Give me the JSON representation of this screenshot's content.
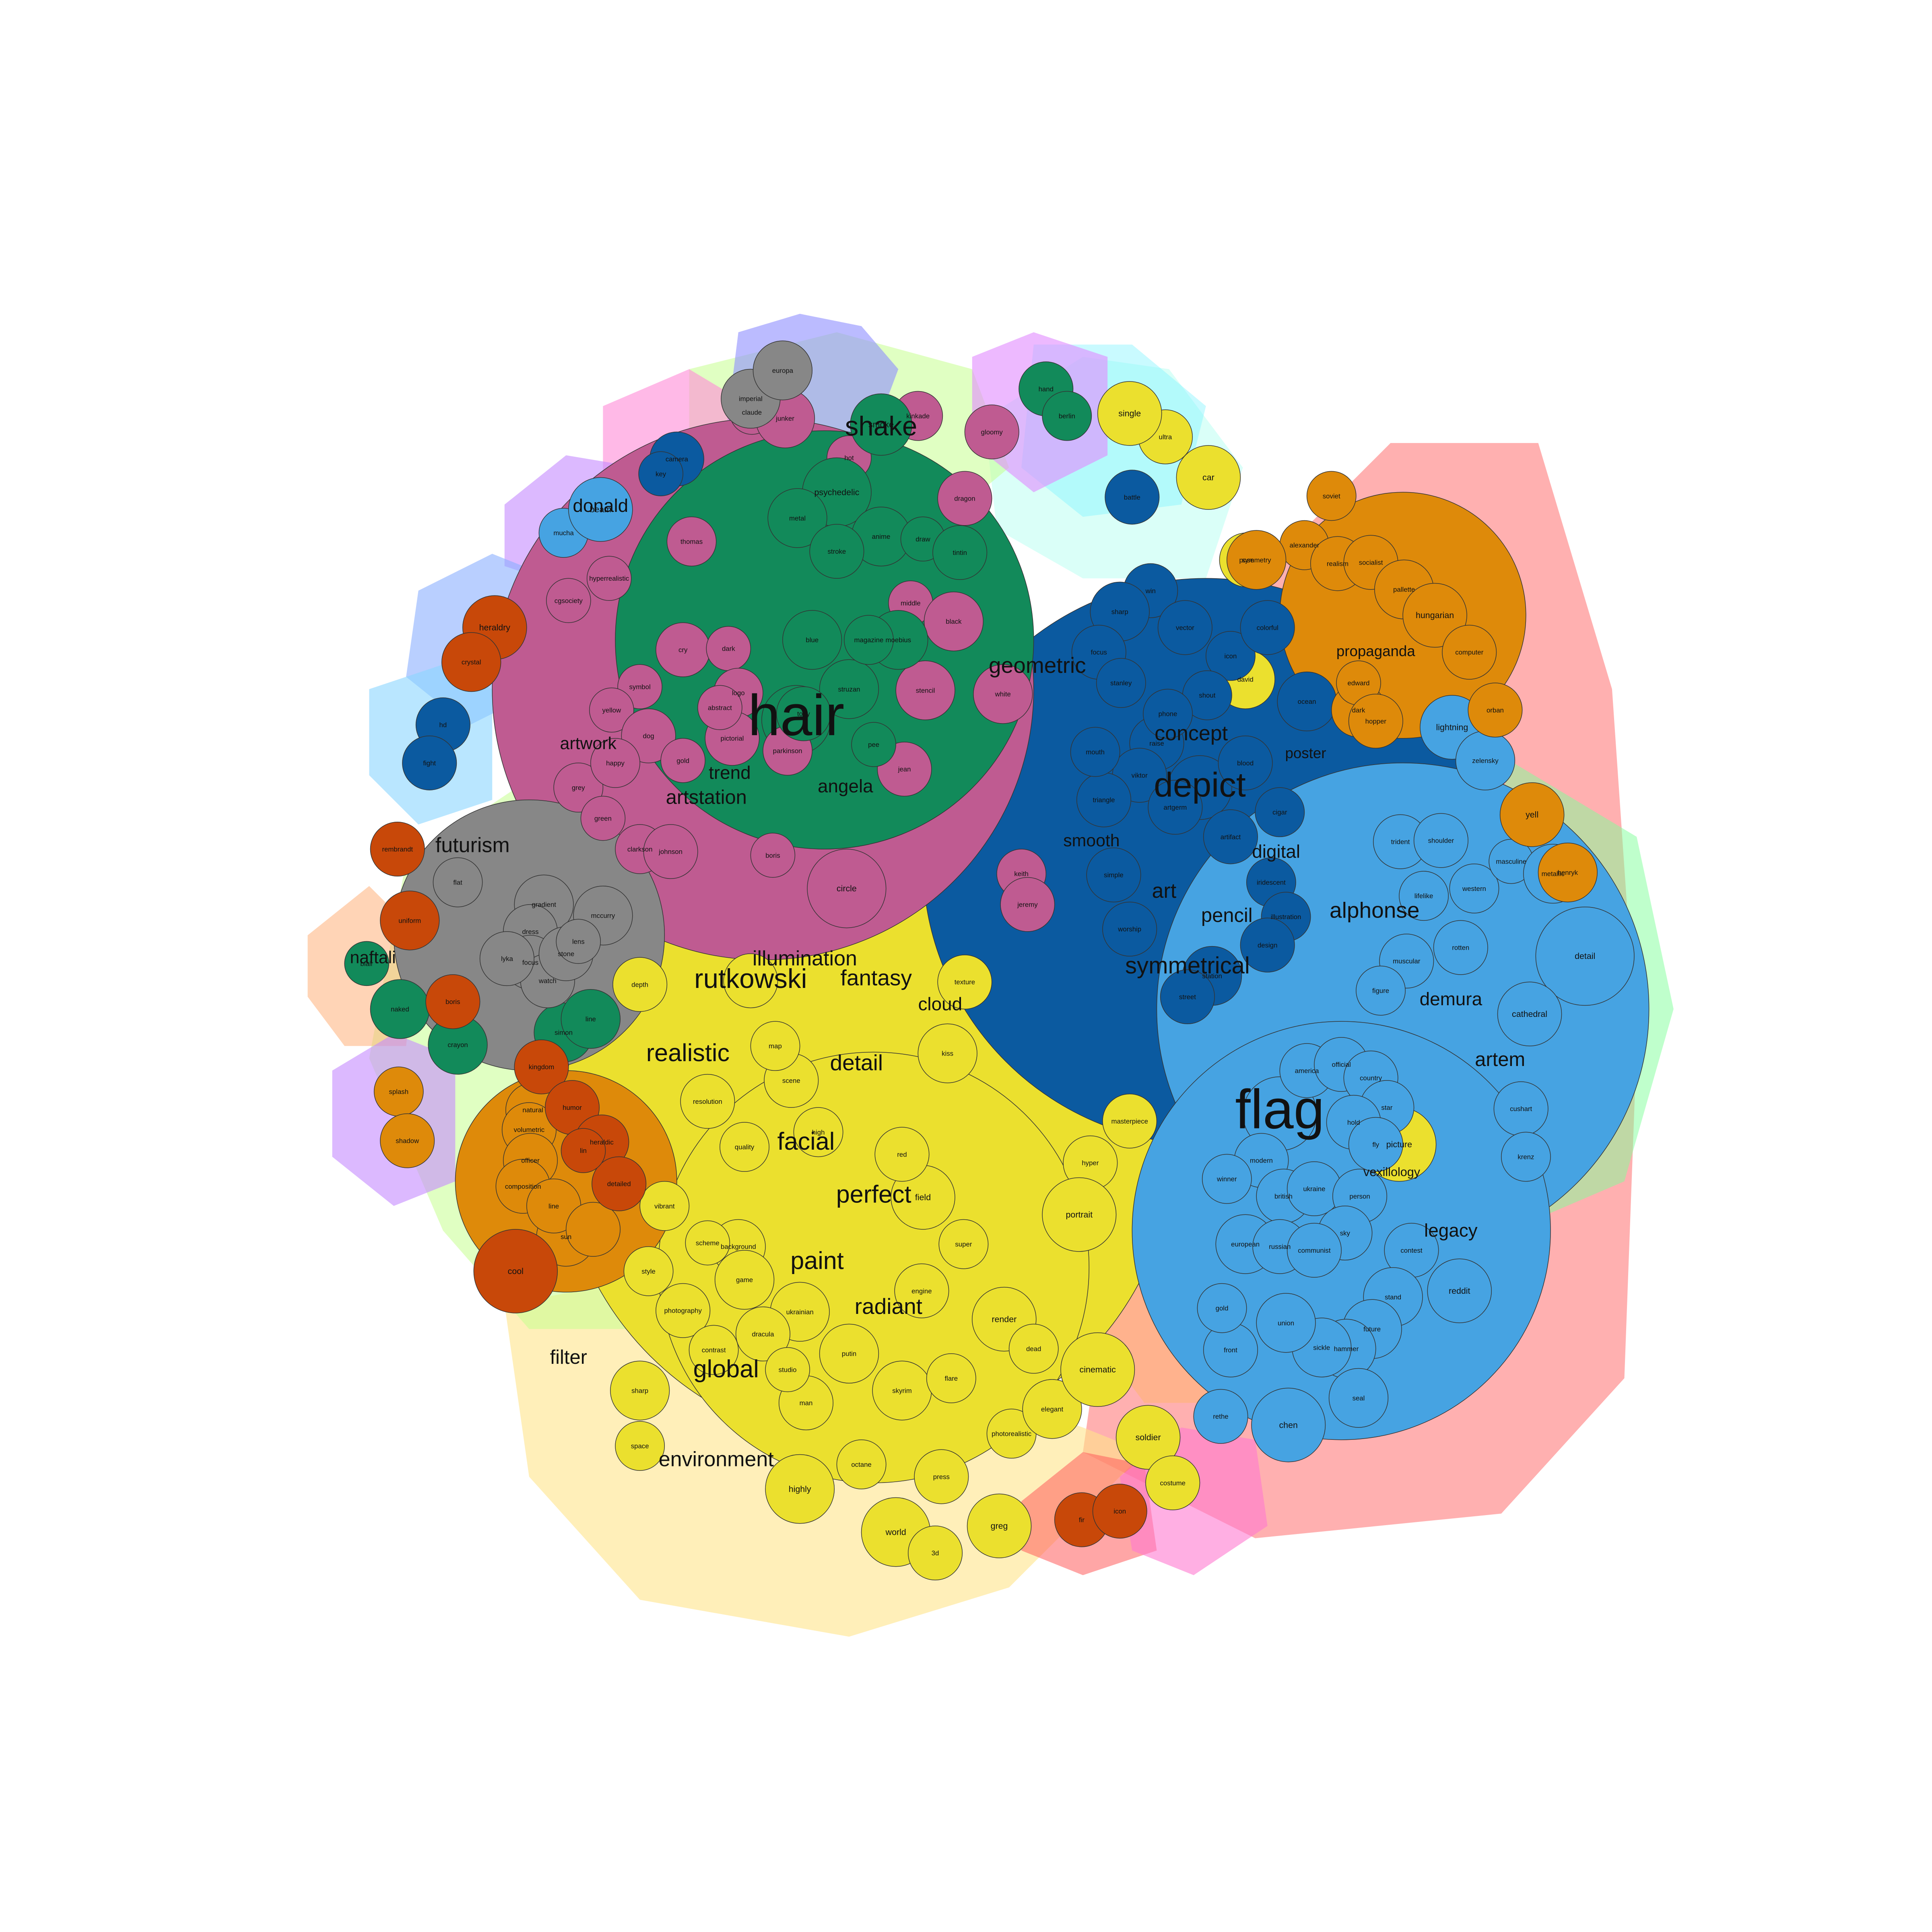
{
  "palette": {
    "yellow": "#ebe02e",
    "pink": "#bf5b91",
    "green": "#128a5a",
    "navy": "#0b5aa0",
    "blue": "#46a3e2",
    "orange": "#de8a0a",
    "rust": "#c84809",
    "gray": "#878787"
  },
  "clusters": [
    {
      "id": "c-yellow",
      "color": "yellow",
      "labels": [
        "rutkowski",
        "fantasy",
        "realistic",
        "illumination",
        "detail",
        "facial",
        "perfect",
        "paint",
        "radiant",
        "global",
        "depth",
        "photography",
        "environment",
        "filter",
        "cloud",
        "sharp",
        "space",
        "highly",
        "octane",
        "press",
        "world",
        "3d",
        "greg",
        "photorealistic",
        "elegant",
        "cinematic",
        "soldier",
        "costume",
        "ultra",
        "car",
        "single",
        "pose",
        "david",
        "picture",
        "hyper",
        "masterpiece",
        "portrait",
        "render",
        "dead",
        "super",
        "ukrainian",
        "dracula",
        "background",
        "style",
        "field",
        "red",
        "kiss",
        "texture",
        "high",
        "scene",
        "map",
        "resolution",
        "quality",
        "contrast",
        "man",
        "putin",
        "skyrim",
        "flare",
        "engine",
        "studio",
        "game",
        "scheme",
        "vibrant",
        "historical",
        "anatomy",
        "prime",
        "intricate",
        "paper",
        "canon",
        "direct",
        "count",
        "face",
        "light",
        "screen",
        "load",
        "canvas",
        "southern",
        "obese",
        "screenshot",
        "ghibli",
        "vladimir",
        "australian",
        "update",
        "romanticism",
        "military",
        "bokeh",
        "europe",
        "show",
        "hollande",
        "françois",
        "comedian",
        "tie",
        "perform",
        "funny",
        "apocalypse",
        "anamorphic",
        "long",
        "shadow",
        "marina",
        "extremely",
        "square",
        "beautiful",
        "professional",
        "grain",
        "body",
        "shoot",
        "color",
        "unreal",
        "style",
        "marble",
        "lens"
      ]
    },
    {
      "id": "c-pink",
      "color": "pink",
      "labels": [
        "artwork",
        "artstation",
        "trend",
        "cgsociety",
        "hyperrealistic",
        "geometric",
        "angela",
        "cry",
        "dark",
        "logo",
        "pictorial",
        "abstract",
        "symbol",
        "yellow",
        "dog",
        "gold",
        "grey",
        "green",
        "clarkson",
        "johnson",
        "boris",
        "circle",
        "stencil",
        "middle",
        "black",
        "white",
        "keith",
        "jeremy",
        "parkinson",
        "claude",
        "junker",
        "hot",
        "kinkade",
        "gloomy",
        "dragon",
        "thomas",
        "jean",
        "happy",
        "grind",
        "big",
        "wlop",
        "horizon",
        "apocalyptic",
        "smile",
        "foggy",
        "ford",
        "jesper",
        "atmosphere",
        "bomb",
        "distance",
        "hyperdetailed",
        "amsterdam",
        "illum",
        "soft",
        "ruin",
        "gothic",
        "jordi"
      ]
    },
    {
      "id": "c-green",
      "color": "green",
      "labels": [
        "hair",
        "shake",
        "smoke",
        "hand",
        "berlin",
        "struzan",
        "pee",
        "moebius",
        "blue",
        "magazine",
        "psychedelic",
        "anime",
        "metal",
        "stroke",
        "draw",
        "tintin",
        "simon",
        "line",
        "naked",
        "crayon",
        "blair",
        "tony",
        "naftali",
        "bennet",
        "benjamin",
        "netanyahu",
        "photograph",
        "oil",
        "drew",
        "kant",
        "goo"
      ]
    },
    {
      "id": "c-navy",
      "color": "navy",
      "labels": [
        "depict",
        "concept",
        "digital",
        "symmetrical",
        "pencil",
        "art",
        "smooth",
        "win",
        "poster",
        "vector",
        "icon",
        "colorful",
        "ocean",
        "sharp",
        "focus",
        "stanley",
        "raise",
        "viktor",
        "artgerm",
        "artifact",
        "iridescent",
        "illustration",
        "design",
        "station",
        "street",
        "worship",
        "simple",
        "triangle",
        "mouth",
        "shout",
        "blood",
        "cigar",
        "phone",
        "camera",
        "key",
        "battle",
        "hd",
        "fight",
        "cyan",
        "contour",
        "illness",
        "8k",
        "sign",
        "drawing",
        "adolf",
        "macron",
        "emmanuel",
        "salvador",
        "dalí",
        "inferno",
        "cursed",
        "reward",
        "angry",
        "loose",
        "fill",
        "tree",
        "zero",
        "gradient"
      ]
    },
    {
      "id": "c-blue",
      "color": "blue",
      "labels": [
        "flag",
        "alphonse",
        "demura",
        "artem",
        "mucha",
        "beam",
        "trident",
        "shoulder",
        "lifelike",
        "western",
        "rotten",
        "muscular",
        "figure",
        "masculine",
        "metallic",
        "detail",
        "cathedral",
        "cushart",
        "krenz",
        "america",
        "official",
        "country",
        "star",
        "hold",
        "fly",
        "vexillology",
        "modern",
        "winner",
        "british",
        "ukraine",
        "person",
        "sky",
        "european",
        "russian",
        "communist",
        "legacy",
        "contest",
        "reddit",
        "stand",
        "future",
        "hammer",
        "sickle",
        "union",
        "front",
        "gold",
        "seal",
        "chen",
        "rethe",
        "lightning",
        "zelensky",
        "pustoviyt",
        "bremnovolt",
        "donald",
        "trump",
        "select",
        "cold",
        "blur",
        "dark"
      ]
    },
    {
      "id": "c-orange",
      "color": "orange",
      "labels": [
        "propaganda",
        "soviet",
        "alexander",
        "realism",
        "socialist",
        "pallette",
        "hungarian",
        "computer",
        "orban",
        "yell",
        "henryk",
        "dark",
        "edward",
        "hopper",
        "symmetry",
        "splash",
        "shadow",
        "natural",
        "volumetric",
        "officer",
        "composition",
        "sun",
        "line"
      ]
    },
    {
      "id": "c-rust",
      "color": "rust",
      "labels": [
        "heraldry",
        "crystal",
        "rembrandt",
        "uniform",
        "boris",
        "kingdom",
        "humor",
        "heraldic",
        "detailed",
        "cool",
        "fir",
        "icon",
        "lin"
      ]
    },
    {
      "id": "c-gray",
      "color": "gray",
      "labels": [
        "futurism",
        "flat",
        "gradient",
        "mccurry",
        "dress",
        "focus",
        "watch",
        "stone",
        "lens",
        "lyka",
        "imperial",
        "europa",
        "universally"
      ]
    }
  ],
  "nodes": [
    {
      "label": "hair",
      "cluster": "green",
      "size": "xl"
    },
    {
      "label": "flag",
      "cluster": "blue",
      "size": "xl"
    },
    {
      "label": "depict",
      "cluster": "navy",
      "size": "l"
    },
    {
      "label": "rutkowski",
      "cluster": "yellow",
      "size": "l"
    },
    {
      "label": "fantasy",
      "cluster": "yellow",
      "size": "m"
    },
    {
      "label": "alphonse",
      "cluster": "blue",
      "size": "m"
    },
    {
      "label": "symmetrical",
      "cluster": "navy",
      "size": "m"
    },
    {
      "label": "artstation",
      "cluster": "pink",
      "size": "m"
    },
    {
      "label": "shake",
      "cluster": "green",
      "size": "m"
    },
    {
      "label": "futurism",
      "cluster": "gray",
      "size": "m"
    },
    {
      "label": "realistic",
      "cluster": "yellow",
      "size": "m"
    },
    {
      "label": "paint",
      "cluster": "yellow",
      "size": "m"
    },
    {
      "label": "global",
      "cluster": "yellow",
      "size": "m"
    },
    {
      "label": "perfect",
      "cluster": "yellow",
      "size": "m"
    },
    {
      "label": "facial",
      "cluster": "yellow",
      "size": "m"
    },
    {
      "label": "radiant",
      "cluster": "yellow",
      "size": "m"
    },
    {
      "label": "detail",
      "cluster": "yellow",
      "size": "m"
    },
    {
      "label": "illumination",
      "cluster": "yellow",
      "size": "m"
    },
    {
      "label": "concept",
      "cluster": "navy",
      "size": "m"
    },
    {
      "label": "geometric",
      "cluster": "pink",
      "size": "m"
    },
    {
      "label": "environment",
      "cluster": "yellow",
      "size": "m"
    },
    {
      "label": "artem",
      "cluster": "blue",
      "size": "m"
    },
    {
      "label": "demura",
      "cluster": "blue",
      "size": "m"
    },
    {
      "label": "pencil",
      "cluster": "navy",
      "size": "m"
    },
    {
      "label": "digital",
      "cluster": "navy",
      "size": "m"
    },
    {
      "label": "trend",
      "cluster": "pink",
      "size": "m"
    },
    {
      "label": "angela",
      "cluster": "pink",
      "size": "m"
    },
    {
      "label": "artwork",
      "cluster": "pink",
      "size": "s"
    },
    {
      "label": "smooth",
      "cluster": "navy",
      "size": "s"
    },
    {
      "label": "art",
      "cluster": "navy",
      "size": "s"
    },
    {
      "label": "legacy",
      "cluster": "blue",
      "size": "s"
    },
    {
      "label": "filter",
      "cluster": "yellow",
      "size": "s"
    },
    {
      "label": "donald",
      "cluster": "blue",
      "size": "s"
    },
    {
      "label": "naftali",
      "cluster": "green",
      "size": "s"
    },
    {
      "label": "cloud",
      "cluster": "yellow",
      "size": "s"
    },
    {
      "label": "propaganda",
      "cluster": "orange",
      "size": "s"
    },
    {
      "label": "poster",
      "cluster": "navy",
      "size": "s"
    },
    {
      "label": "vexillology",
      "cluster": "blue",
      "size": "s"
    }
  ]
}
